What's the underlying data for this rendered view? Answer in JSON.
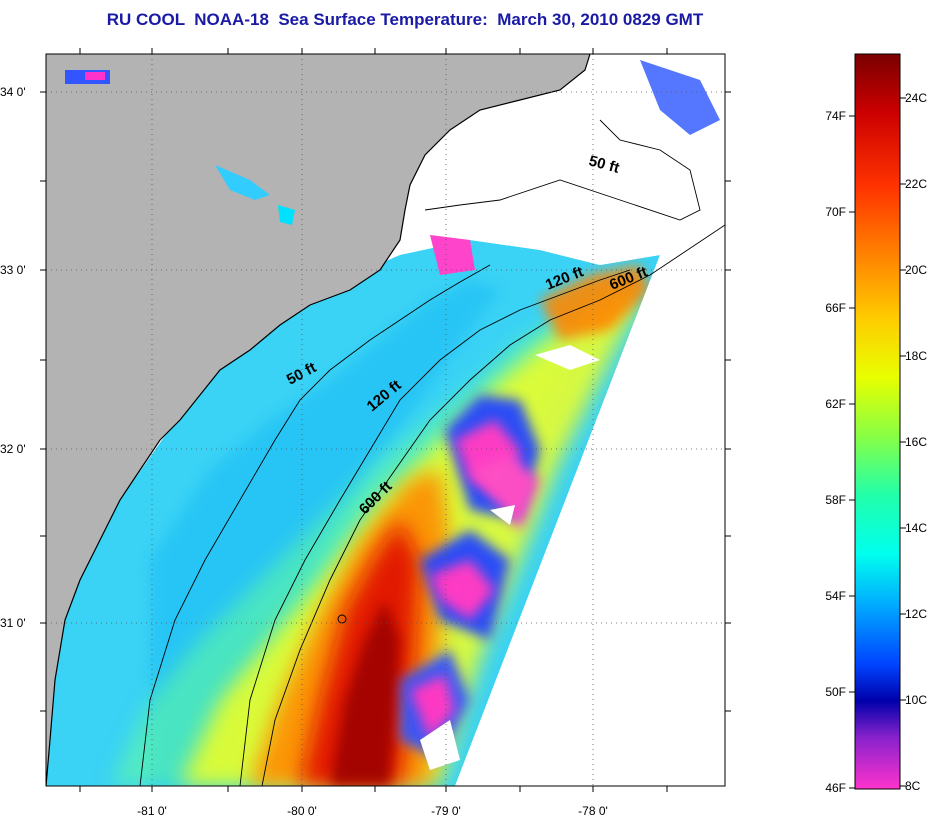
{
  "title": "RU COOL  NOAA-18  Sea Surface Temperature:  March 30, 2010 0829 GMT",
  "map": {
    "lat_ticks": [
      "34 0'",
      "33 0'",
      "32 0'",
      "31 0'"
    ],
    "lon_ticks": [
      "-81 0'",
      "-80 0'",
      "-79 0'",
      "-78 0'"
    ],
    "contour_labels": [
      "50 ft",
      "120 ft",
      "600 ft",
      "50 ft",
      "120 ft",
      "600 ft"
    ],
    "colors": {
      "land": "#b3b3b3",
      "no_data": "#ffffff",
      "coastline": "#000000",
      "cold": "#ff33cc",
      "warm": "#8b0000"
    }
  },
  "colorbar": {
    "fahrenheit_labels": [
      "74F",
      "70F",
      "66F",
      "62F",
      "58F",
      "54F",
      "50F",
      "46F"
    ],
    "celsius_labels": [
      "24C",
      "22C",
      "20C",
      "18C",
      "16C",
      "14C",
      "12C",
      "10C",
      "8C"
    ],
    "range_c": [
      8,
      25
    ],
    "colors_top_to_bottom": [
      "#7a0000",
      "#cc0000",
      "#ff3300",
      "#ff8800",
      "#ffcc00",
      "#e8ff00",
      "#88ff44",
      "#22ffaa",
      "#00ffee",
      "#00aaff",
      "#0044ff",
      "#0000aa",
      "#8822cc",
      "#ff33cc"
    ]
  }
}
